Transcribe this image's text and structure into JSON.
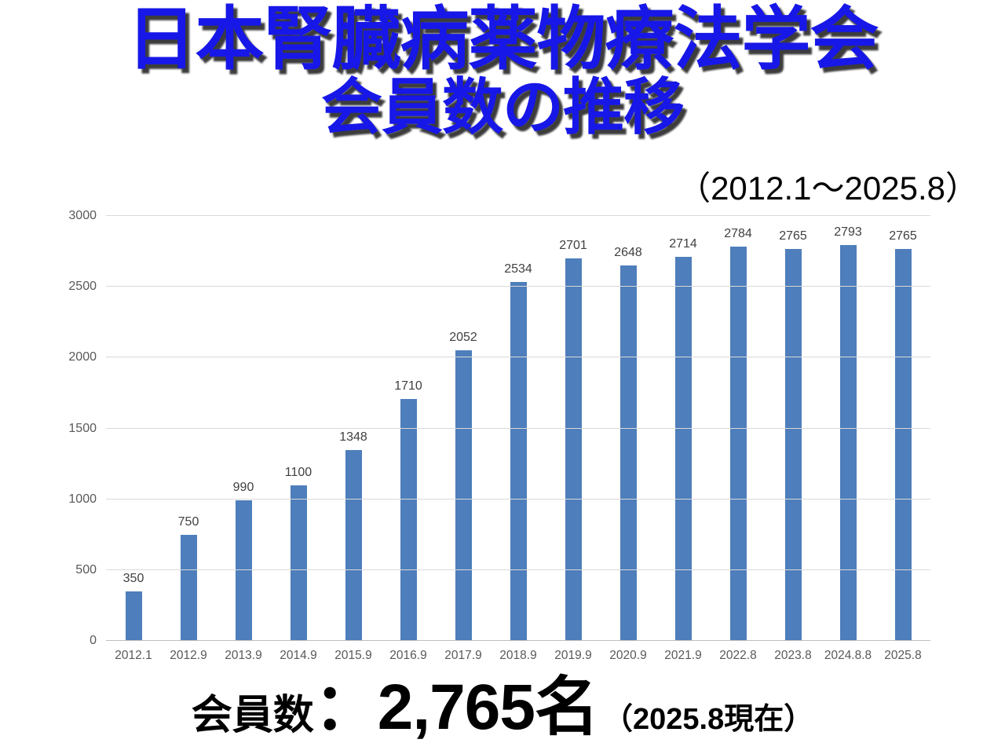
{
  "colors": {
    "title_blue": "#1717E8",
    "title_shadow": "#3C3C3C",
    "bar": "#4E7EBB",
    "gridline": "#D9D9D9",
    "axis_line": "#BFBFBF",
    "tick_label": "#595959",
    "data_label": "#404040",
    "footer_text": "#000000"
  },
  "title": {
    "line1": "日本腎臓病薬物療法学会",
    "line2": "会員数の推移"
  },
  "subtitle": "（2012.1～2025.8）",
  "chart_data": {
    "type": "bar",
    "title": "日本腎臓病薬物療法学会 会員数の推移（2012.1～2025.8）",
    "categories": [
      "2012.1",
      "2012.9",
      "2013.9",
      "2014.9",
      "2015.9",
      "2016.9",
      "2017.9",
      "2018.9",
      "2019.9",
      "2020.9",
      "2021.9",
      "2022.8",
      "2023.8",
      "2024.8.8",
      "2025.8"
    ],
    "values": [
      350,
      750,
      990,
      1100,
      1348,
      1710,
      2052,
      2534,
      2701,
      2648,
      2714,
      2784,
      2765,
      2793,
      2765
    ],
    "xlabel": "",
    "ylabel": "",
    "ylim": [
      0,
      3000
    ],
    "yticks": [
      0,
      500,
      1000,
      1500,
      2000,
      2500,
      3000
    ],
    "grid": true,
    "legend": false,
    "data_labels": true
  },
  "footer": {
    "label": "会員数",
    "value": "：2,765名",
    "note": "（2025.8現在）"
  }
}
